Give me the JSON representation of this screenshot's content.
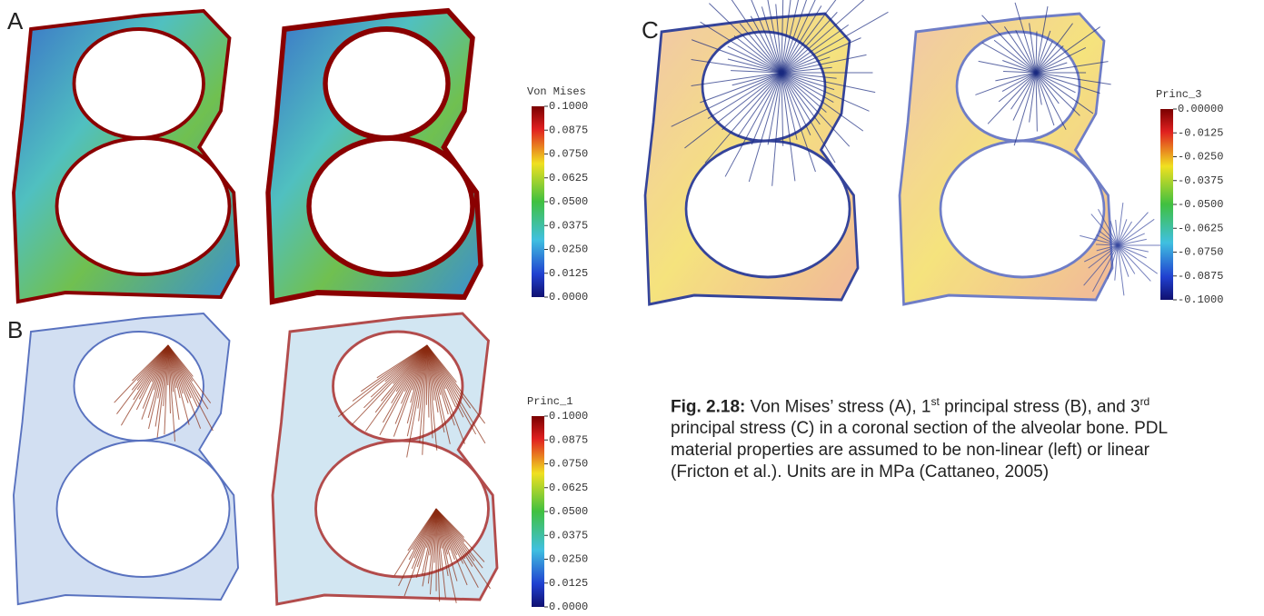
{
  "panels": [
    {
      "label": "A",
      "colorbar": {
        "title": "Von Mises",
        "ticks": [
          "0.1000",
          "0.0875",
          "0.0750",
          "0.0625",
          "0.0500",
          "0.0375",
          "0.0250",
          "0.0125",
          "0.0000"
        ]
      }
    },
    {
      "label": "B",
      "colorbar": {
        "title": "Princ_1",
        "ticks": [
          "0.1000",
          "0.0875",
          "0.0750",
          "0.0625",
          "0.0500",
          "0.0375",
          "0.0250",
          "0.0125",
          "0.0000"
        ]
      }
    },
    {
      "label": "C",
      "colorbar": {
        "title": "Princ_3",
        "ticks": [
          "0.00000",
          "-0.0125",
          "-0.0250",
          "-0.0375",
          "-0.0500",
          "-0.0625",
          "-0.0750",
          "-0.0875",
          "-0.1000"
        ]
      }
    }
  ],
  "caption": {
    "lead": "Fig. 2.18:",
    "parts": [
      "Von Mises’ stress (A), 1",
      "st",
      " principal stress (B), and ",
      "3",
      "rd",
      " principal stress (C) in a coronal section of the alveolar bone. PDL material properties are assumed to be non-linear (left) or linear (Fricton et al.). Units are in MPa (Cattaneo, 2005)"
    ]
  }
}
